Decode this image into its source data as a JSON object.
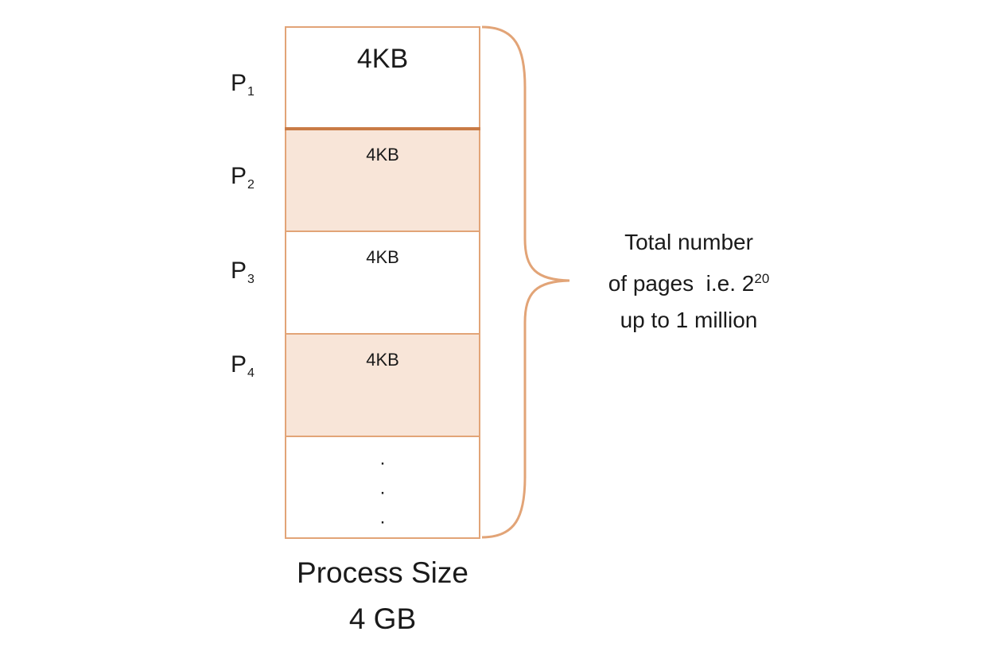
{
  "pages": [
    {
      "label": "P",
      "subscript": "1",
      "size": "4KB",
      "shaded": false
    },
    {
      "label": "P",
      "subscript": "2",
      "size": "4KB",
      "shaded": true
    },
    {
      "label": "P",
      "subscript": "3",
      "size": "4KB",
      "shaded": false
    },
    {
      "label": "P",
      "subscript": "4",
      "size": "4KB",
      "shaded": true
    }
  ],
  "ellipsis": [
    "·",
    "·",
    "·"
  ],
  "caption": {
    "line1": "Process Size",
    "line2": "4 GB"
  },
  "annotation": {
    "line1": "Total number",
    "line2_text": "of pages  i.e. 2",
    "line2_superscript": "20",
    "line3": "up to 1 million"
  },
  "colors": {
    "accent": "#e2a477",
    "shade": "#f8e5d8",
    "divider_dark": "#c97b45"
  }
}
